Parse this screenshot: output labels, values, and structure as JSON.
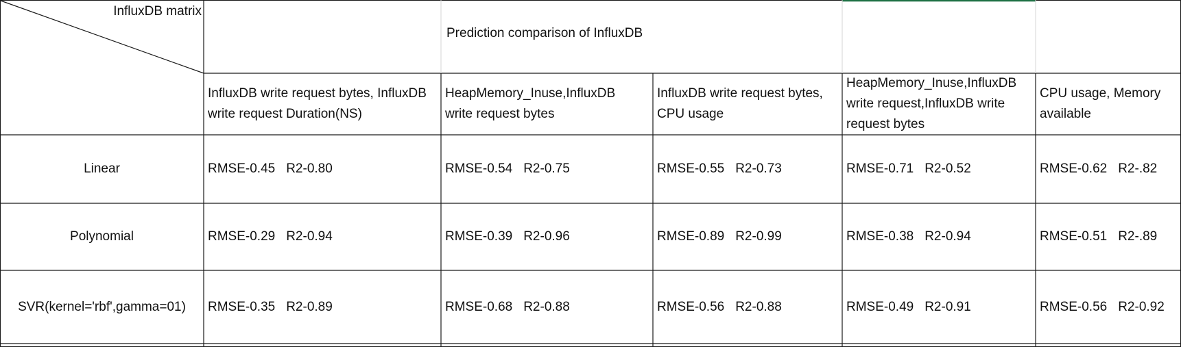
{
  "table": {
    "corner_label": "InfluxDB matrix",
    "title": "Prediction comparison of InfluxDB",
    "columns": [
      "InfluxDB write request bytes, InfluxDB write request Duration(NS)",
      "HeapMemory_Inuse,InfluxDB write request bytes",
      "InfluxDB write request bytes, CPU usage",
      "HeapMemory_Inuse,InfluxDB write request,InfluxDB write request bytes",
      "CPU usage, Memory available"
    ],
    "rows": [
      {
        "label": "Linear",
        "cells": [
          {
            "rmse": "RMSE-0.45",
            "r2": "R2-0.80"
          },
          {
            "rmse": "RMSE-0.54",
            "r2": "R2-0.75"
          },
          {
            "rmse": "RMSE-0.55",
            "r2": "R2-0.73"
          },
          {
            "rmse": "RMSE-0.71",
            "r2": "R2-0.52"
          },
          {
            "rmse": "RMSE-0.62",
            "r2": "R2-.82"
          }
        ]
      },
      {
        "label": "Polynomial",
        "cells": [
          {
            "rmse": "RMSE-0.29",
            "r2": "R2-0.94"
          },
          {
            "rmse": "RMSE-0.39",
            "r2": "R2-0.96"
          },
          {
            "rmse": "RMSE-0.89",
            "r2": "R2-0.99"
          },
          {
            "rmse": "RMSE-0.38",
            "r2": "R2-0.94"
          },
          {
            "rmse": "RMSE-0.51",
            "r2": "R2-.89"
          }
        ]
      },
      {
        "label": "SVR(kernel='rbf',gamma=01)",
        "cells": [
          {
            "rmse": "RMSE-0.35",
            "r2": "R2-0.89"
          },
          {
            "rmse": "RMSE-0.68",
            "r2": "R2-0.88"
          },
          {
            "rmse": "RMSE-0.56",
            "r2": "R2-0.88"
          },
          {
            "rmse": "RMSE-0.49",
            "r2": "R2-0.91"
          },
          {
            "rmse": "RMSE-0.56",
            "r2": "R2-0.92"
          }
        ]
      }
    ]
  },
  "colors": {
    "grid_line": "#1a1a1a",
    "selection_accent": "#1e7145",
    "text": "#111111"
  }
}
